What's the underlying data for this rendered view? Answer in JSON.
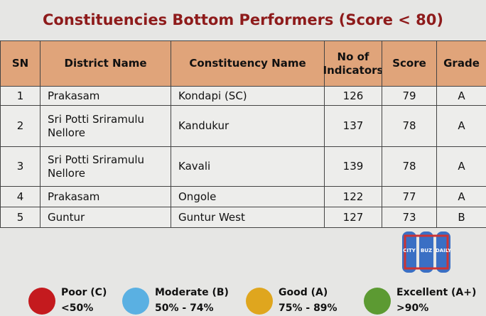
{
  "title": "Constituencies Bottom Performers (Score < 80)",
  "table": {
    "header": [
      "SN",
      "District Name",
      "Constituency Name",
      "No of Indicators",
      "Score",
      "Grade"
    ],
    "rows": [
      [
        "1",
        "Prakasam",
        "Kondapi (SC)",
        "126",
        "79",
        "A"
      ],
      [
        "2",
        "Sri Potti Sriramulu Nellore",
        "Kandukur",
        "137",
        "78",
        "A"
      ],
      [
        "3",
        "Sri Potti Sriramulu Nellore",
        "Kavali",
        "139",
        "78",
        "A"
      ],
      [
        "4",
        "Prakasam",
        "Ongole",
        "122",
        "77",
        "A"
      ],
      [
        "5",
        "Guntur",
        "Guntur West",
        "127",
        "73",
        "B"
      ]
    ]
  },
  "logo": {
    "left": "CITY",
    "middle": "BUZ",
    "right": "DAILY"
  },
  "legend": [
    {
      "label": "Poor (C)",
      "range": "<50%",
      "color": "#c41a1e"
    },
    {
      "label": "Moderate (B)",
      "range": "50% - 74%",
      "color": "#5ab0e2"
    },
    {
      "label": "Good (A)",
      "range": "75% - 89%",
      "color": "#dfa61e"
    },
    {
      "label": "Excellent (A+)",
      "range": ">90%",
      "color": "#5c9a32"
    }
  ]
}
